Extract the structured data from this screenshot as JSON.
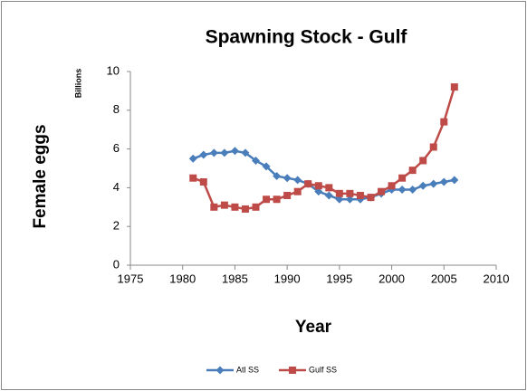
{
  "chart_data": {
    "type": "line",
    "title": "Spawning Stock - Gulf",
    "x_label": "Year",
    "y_label": "Female eggs",
    "y_unit_label": "Billions",
    "x": [
      1981,
      1982,
      1983,
      1984,
      1985,
      1986,
      1987,
      1988,
      1989,
      1990,
      1991,
      1992,
      1993,
      1994,
      1995,
      1996,
      1997,
      1998,
      1999,
      2000,
      2001,
      2002,
      2003,
      2004,
      2005,
      2006
    ],
    "series": [
      {
        "name": "Atl SS",
        "color": "#4a7ebb",
        "marker": "diamond",
        "values": [
          5.5,
          5.7,
          5.8,
          5.8,
          5.9,
          5.8,
          5.4,
          5.1,
          4.6,
          4.5,
          4.4,
          4.2,
          3.8,
          3.6,
          3.4,
          3.4,
          3.4,
          3.5,
          3.7,
          3.9,
          3.9,
          3.9,
          4.1,
          4.2,
          4.3,
          4.4
        ]
      },
      {
        "name": "Gulf SS",
        "color": "#be4b48",
        "marker": "square",
        "values": [
          4.5,
          4.3,
          3.0,
          3.1,
          3.0,
          2.9,
          3.0,
          3.4,
          3.4,
          3.6,
          3.8,
          4.2,
          4.1,
          4.0,
          3.7,
          3.7,
          3.6,
          3.5,
          3.8,
          4.1,
          4.5,
          4.9,
          5.4,
          6.1,
          7.4,
          9.2
        ]
      }
    ],
    "xlim": [
      1975,
      2010
    ],
    "xticks": [
      1975,
      1980,
      1985,
      1990,
      1995,
      2000,
      2005,
      2010
    ],
    "ylim": [
      0,
      10
    ],
    "yticks": [
      0,
      2,
      4,
      6,
      8,
      10
    ],
    "grid": false,
    "legend": "bottom"
  }
}
